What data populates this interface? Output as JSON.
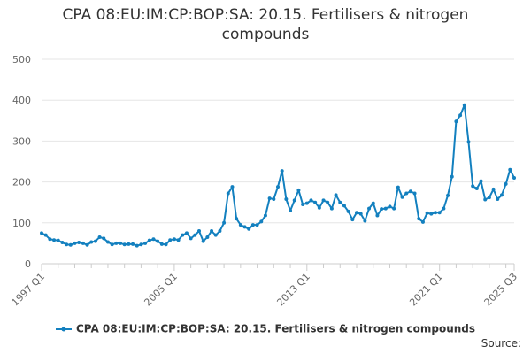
{
  "colors": {
    "series": "#1380bf",
    "grid": "#e6e6e6",
    "axis": "#cccccc",
    "text": "#333333",
    "tick_text": "#666666"
  },
  "source_label": "Source:",
  "chart_data": {
    "type": "line",
    "title_lines": [
      "CPA 08:EU:IM:CP:BOP:SA: 20.15. Fertilisers & nitrogen",
      "compounds"
    ],
    "ylim": [
      0,
      500
    ],
    "yticks": [
      0,
      100,
      200,
      300,
      400,
      500
    ],
    "xtick_labels": [
      "1997 Q1",
      "2005 Q1",
      "2013 Q1",
      "2021 Q1",
      "2025 Q3"
    ],
    "grid": true,
    "legend_position": "bottom-center",
    "series": [
      {
        "name": "CPA 08:EU:IM:CP:BOP:SA: 20.15. Fertilisers & nitrogen compounds",
        "x": [
          "1997 Q1",
          "1997 Q2",
          "1997 Q3",
          "1997 Q4",
          "1998 Q1",
          "1998 Q2",
          "1998 Q3",
          "1998 Q4",
          "1999 Q1",
          "1999 Q2",
          "1999 Q3",
          "1999 Q4",
          "2000 Q1",
          "2000 Q2",
          "2000 Q3",
          "2000 Q4",
          "2001 Q1",
          "2001 Q2",
          "2001 Q3",
          "2001 Q4",
          "2002 Q1",
          "2002 Q2",
          "2002 Q3",
          "2002 Q4",
          "2003 Q1",
          "2003 Q2",
          "2003 Q3",
          "2003 Q4",
          "2004 Q1",
          "2004 Q2",
          "2004 Q3",
          "2004 Q4",
          "2005 Q1",
          "2005 Q2",
          "2005 Q3",
          "2005 Q4",
          "2006 Q1",
          "2006 Q2",
          "2006 Q3",
          "2006 Q4",
          "2007 Q1",
          "2007 Q2",
          "2007 Q3",
          "2007 Q4",
          "2008 Q1",
          "2008 Q2",
          "2008 Q3",
          "2008 Q4",
          "2009 Q1",
          "2009 Q2",
          "2009 Q3",
          "2009 Q4",
          "2010 Q1",
          "2010 Q2",
          "2010 Q3",
          "2010 Q4",
          "2011 Q1",
          "2011 Q2",
          "2011 Q3",
          "2011 Q4",
          "2012 Q1",
          "2012 Q2",
          "2012 Q3",
          "2012 Q4",
          "2013 Q1",
          "2013 Q2",
          "2013 Q3",
          "2013 Q4",
          "2014 Q1",
          "2014 Q2",
          "2014 Q3",
          "2014 Q4",
          "2015 Q1",
          "2015 Q2",
          "2015 Q3",
          "2015 Q4",
          "2016 Q1",
          "2016 Q2",
          "2016 Q3",
          "2016 Q4",
          "2017 Q1",
          "2017 Q2",
          "2017 Q3",
          "2017 Q4",
          "2018 Q1",
          "2018 Q2",
          "2018 Q3",
          "2018 Q4",
          "2019 Q1",
          "2019 Q2",
          "2019 Q3",
          "2019 Q4",
          "2020 Q1",
          "2020 Q2",
          "2020 Q3",
          "2020 Q4",
          "2021 Q1",
          "2021 Q2",
          "2021 Q3",
          "2021 Q4",
          "2022 Q1",
          "2022 Q2",
          "2022 Q3",
          "2022 Q4",
          "2023 Q1",
          "2023 Q2",
          "2023 Q3",
          "2023 Q4",
          "2024 Q1",
          "2024 Q2",
          "2024 Q3",
          "2024 Q4",
          "2025 Q1",
          "2025 Q2",
          "2025 Q3"
        ],
        "values": [
          75,
          70,
          60,
          58,
          57,
          52,
          47,
          46,
          50,
          52,
          50,
          46,
          53,
          55,
          65,
          62,
          53,
          47,
          50,
          50,
          47,
          48,
          48,
          44,
          47,
          50,
          57,
          60,
          55,
          48,
          47,
          58,
          60,
          58,
          70,
          75,
          62,
          70,
          80,
          55,
          65,
          80,
          70,
          80,
          100,
          172,
          188,
          110,
          95,
          90,
          85,
          95,
          95,
          103,
          118,
          160,
          158,
          188,
          227,
          158,
          130,
          155,
          180,
          145,
          148,
          155,
          150,
          137,
          155,
          150,
          135,
          168,
          150,
          142,
          128,
          108,
          125,
          122,
          105,
          135,
          148,
          118,
          134,
          135,
          140,
          135,
          187,
          163,
          172,
          177,
          172,
          110,
          102,
          124,
          122,
          125,
          125,
          135,
          167,
          213,
          348,
          363,
          388,
          298,
          190,
          184,
          202,
          157,
          162,
          182,
          158,
          168,
          195,
          230,
          210
        ]
      }
    ]
  }
}
